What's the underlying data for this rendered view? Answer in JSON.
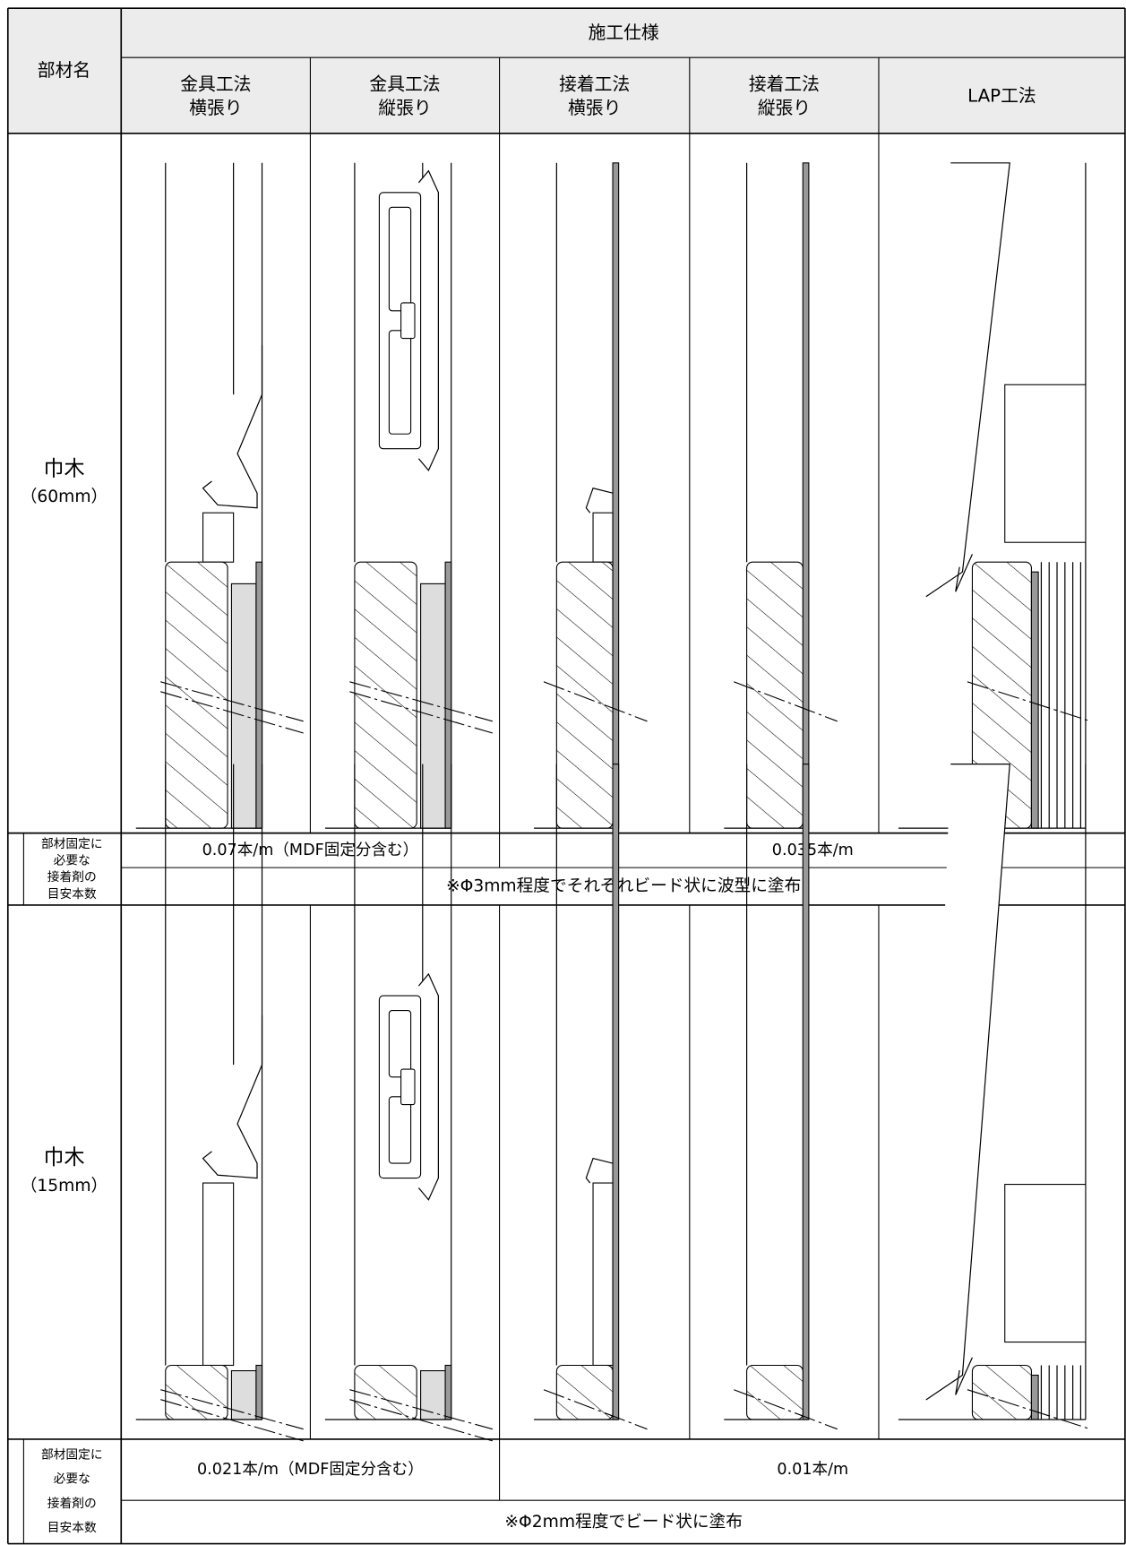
{
  "header": {
    "member_name": "部材名",
    "specification": "施工仕様",
    "methods": [
      [
        "金具工法",
        "横張り"
      ],
      [
        "金具工法",
        "縦張り"
      ],
      [
        "接着工法",
        "横張り"
      ],
      [
        "接着工法",
        "縦張り"
      ],
      [
        "LAP工法"
      ]
    ]
  },
  "sections": [
    {
      "name": "巾木",
      "size": "（60mm）",
      "adhesive_label": [
        "部材固定に",
        "必要な",
        "接着剤の",
        "目安本数"
      ],
      "amount_metal": "0.07本/m（MDF固定分含む）",
      "amount_adhesive": "0.035本/m",
      "note": "※Φ3mm程度でそれぞれビード状に波型に塗布"
    },
    {
      "name": "巾木",
      "size": "（15mm）",
      "adhesive_label": [
        "部材固定に",
        "必要な",
        "接着剤の",
        "目安本数"
      ],
      "amount_metal": "0.021本/m（MDF固定分含む）",
      "amount_adhesive": "0.01本/m",
      "note": "※Φ2mm程度でビード状に塗布"
    }
  ]
}
